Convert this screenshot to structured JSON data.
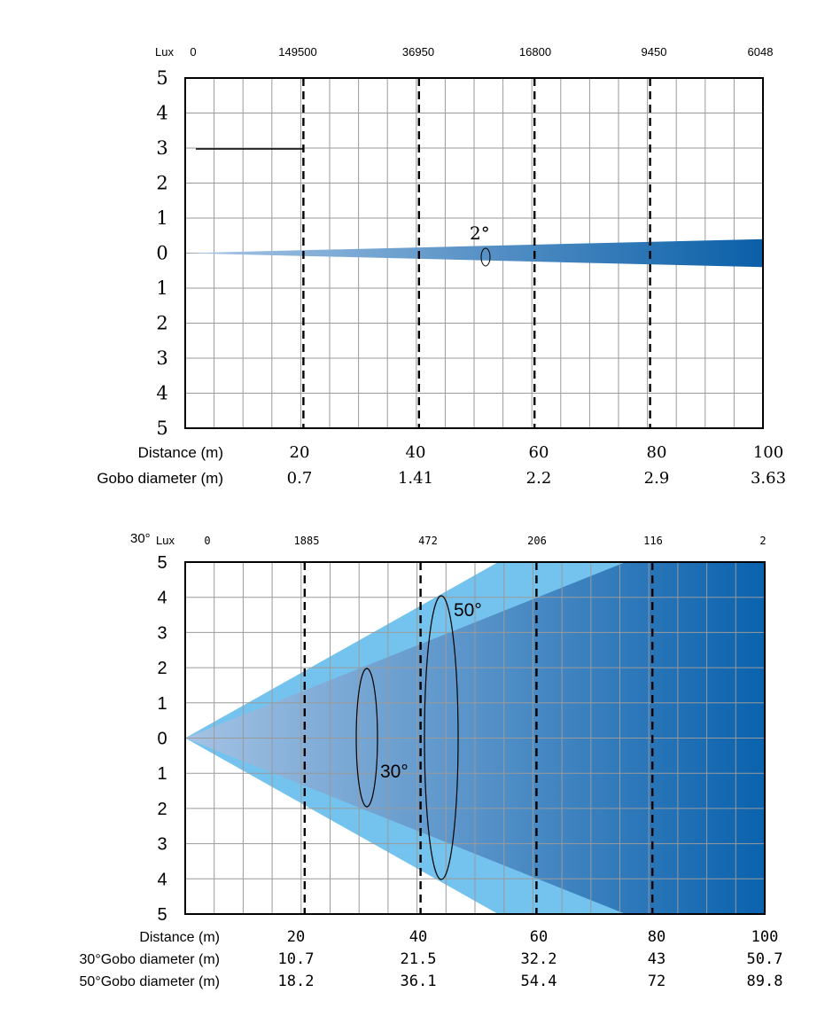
{
  "chart_data": [
    {
      "type": "area",
      "lux_label": "Lux",
      "lux_values": [
        "0",
        "149500",
        "36950",
        "16800",
        "9450",
        "6048"
      ],
      "y_ticks": [
        "5",
        "4",
        "3",
        "2",
        "1",
        "0",
        "1",
        "2",
        "3",
        "4",
        "5"
      ],
      "ylim": [
        -5,
        5
      ],
      "xlim": [
        0,
        100
      ],
      "dashed_x": [
        20,
        40,
        60,
        80
      ],
      "beam_angle_label": "2°",
      "beams": [
        {
          "angle": 2,
          "half_width_at": [
            [
              0,
              0
            ],
            [
              100,
              0.4
            ]
          ],
          "color": "#0a5fa8"
        }
      ],
      "rows": [
        {
          "label": "Distance (m)",
          "values": [
            "20",
            "40",
            "60",
            "80",
            "100"
          ]
        },
        {
          "label": "Gobo diameter (m)",
          "values": [
            "0.7",
            "1.41",
            "2.2",
            "2.9",
            "3.63"
          ]
        }
      ]
    },
    {
      "type": "area",
      "angle_prefix": "30°",
      "lux_label": "Lux",
      "lux_values": [
        "0",
        "1885",
        "472",
        "206",
        "116",
        "2"
      ],
      "y_ticks": [
        "5",
        "4",
        "3",
        "2",
        "1",
        "0",
        "1",
        "2",
        "3",
        "4",
        "5"
      ],
      "ylim": [
        -5,
        5
      ],
      "xlim": [
        0,
        100
      ],
      "dashed_x": [
        20,
        40,
        60,
        80
      ],
      "annotations": [
        "50°",
        "30°"
      ],
      "beams": [
        {
          "angle": 50,
          "half_width_at": [
            [
              0,
              0
            ],
            [
              54,
              5
            ]
          ],
          "color": "#74c3ee"
        },
        {
          "angle": 30,
          "half_width_at": [
            [
              0,
              0
            ],
            [
              76,
              5
            ]
          ],
          "color": "#0a62ad"
        }
      ],
      "rows": [
        {
          "label": "Distance (m)",
          "values": [
            "20",
            "40",
            "60",
            "80",
            "100"
          ]
        },
        {
          "label": "30°Gobo diameter (m)",
          "values": [
            "10.7",
            "21.5",
            "32.2",
            "43",
            "50.7"
          ]
        },
        {
          "label": "50°Gobo diameter (m)",
          "values": [
            "18.2",
            "36.1",
            "54.4",
            "72",
            "89.8"
          ]
        }
      ]
    }
  ]
}
